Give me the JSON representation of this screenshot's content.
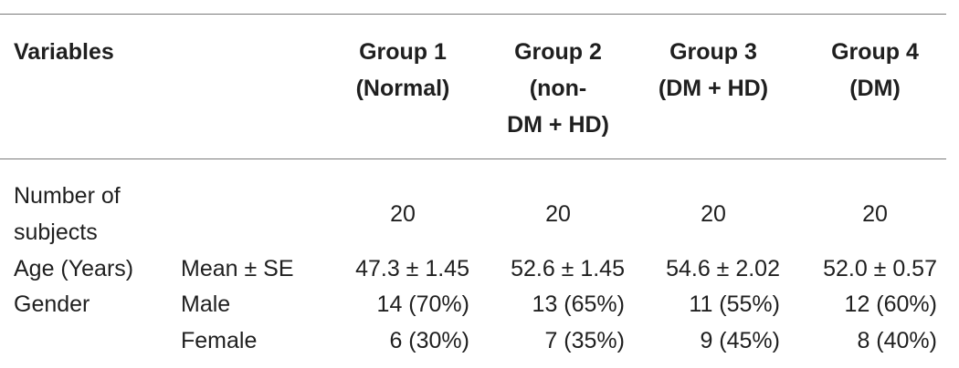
{
  "table": {
    "header": {
      "variables": "Variables",
      "groups": [
        {
          "line1": "Group 1",
          "line2": "(Normal)",
          "line3": ""
        },
        {
          "line1": "Group 2",
          "line2": "(non-",
          "line3": "DM + HD)"
        },
        {
          "line1": "Group 3",
          "line2": "(DM + HD)",
          "line3": ""
        },
        {
          "line1": "Group 4",
          "line2": "(DM)",
          "line3": ""
        }
      ]
    },
    "rows": {
      "subjects": {
        "label_line1": "Number of",
        "label_line2": "subjects",
        "values": [
          "20",
          "20",
          "20",
          "20"
        ]
      },
      "age": {
        "label": "Age (Years)",
        "sub": "Mean ± SE",
        "values": [
          "47.3 ± 1.45",
          "52.6 ± 1.45",
          "54.6 ± 2.02",
          "52.0 ± 0.57"
        ]
      },
      "gender": {
        "label": "Gender",
        "male": {
          "sub": "Male",
          "values": [
            "14 (70%)",
            "13 (65%)",
            "11 (55%)",
            "12 (60%)"
          ]
        },
        "female": {
          "sub": "Female",
          "values": [
            "6 (30%)",
            "7 (35%)",
            "9 (45%)",
            "8 (40%)"
          ]
        }
      }
    }
  }
}
